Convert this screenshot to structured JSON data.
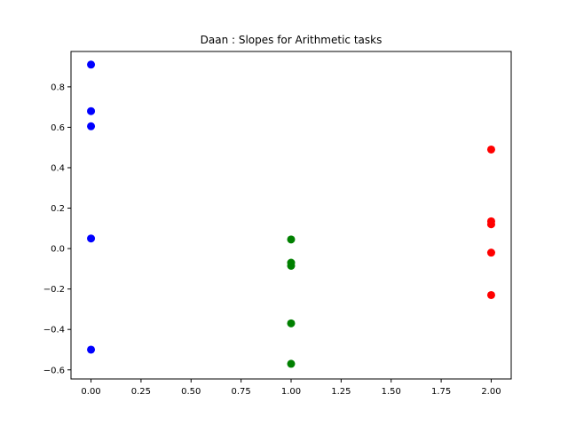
{
  "chart_data": {
    "type": "scatter",
    "title": "Daan : Slopes for Arithmetic tasks",
    "xlabel": "",
    "ylabel": "",
    "xlim": [
      -0.1,
      2.1
    ],
    "ylim": [
      -0.645,
      0.975
    ],
    "grid": false,
    "xticks": [
      0.0,
      0.25,
      0.5,
      0.75,
      1.0,
      1.25,
      1.5,
      1.75,
      2.0
    ],
    "xtick_labels": [
      "0.00",
      "0.25",
      "0.50",
      "0.75",
      "1.00",
      "1.25",
      "1.50",
      "1.75",
      "2.00"
    ],
    "yticks": [
      -0.6,
      -0.4,
      -0.2,
      0.0,
      0.2,
      0.4,
      0.6,
      0.8
    ],
    "ytick_labels": [
      "−0.6",
      "−0.4",
      "−0.2",
      "0.0",
      "0.2",
      "0.4",
      "0.6",
      "0.8"
    ],
    "series": [
      {
        "name": "blue",
        "color": "#0000ff",
        "x": [
          0,
          0,
          0,
          0,
          0
        ],
        "y": [
          0.91,
          0.68,
          0.605,
          0.05,
          -0.5
        ]
      },
      {
        "name": "green",
        "color": "#008000",
        "x": [
          1,
          1,
          1,
          1,
          1
        ],
        "y": [
          0.045,
          -0.07,
          -0.085,
          -0.37,
          -0.57
        ]
      },
      {
        "name": "red",
        "color": "#ff0000",
        "x": [
          2,
          2,
          2,
          2,
          2
        ],
        "y": [
          0.49,
          0.135,
          0.12,
          -0.02,
          -0.23
        ]
      }
    ]
  }
}
